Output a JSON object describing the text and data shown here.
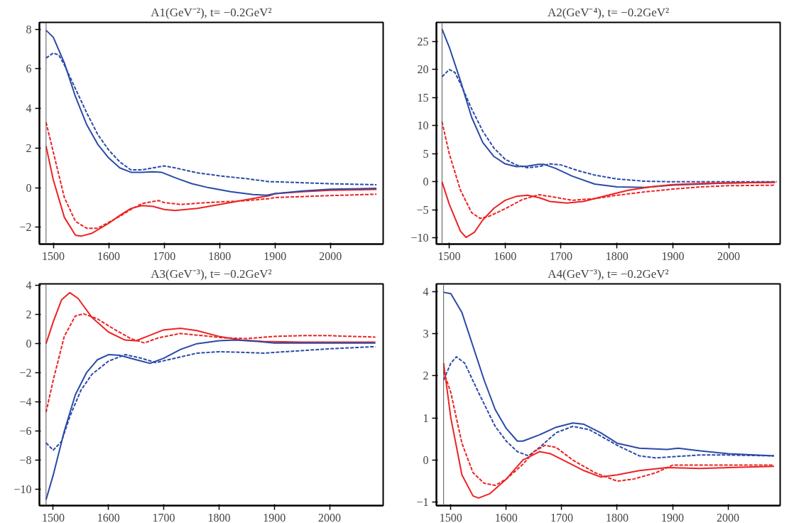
{
  "chart_data": [
    {
      "type": "line",
      "title": "A1(GeV⁻²), t= −0.2GeV²",
      "xlim": [
        1475,
        2095
      ],
      "xticks": [
        1500,
        1600,
        1700,
        1800,
        1900,
        2000
      ],
      "ylim": [
        -2.85,
        8.35
      ],
      "yticks": [
        {
          "value": -2,
          "label": "−2"
        },
        0,
        2,
        4,
        6,
        8
      ],
      "grid": false,
      "ref_lines": [
        {
          "axis": "x",
          "value": 1487,
          "color": "#555555"
        }
      ],
      "series": [
        {
          "color": "#2a4aa8",
          "line_style": "dashed",
          "x": [
            1487,
            1500,
            1510,
            1520,
            1540,
            1560,
            1580,
            1600,
            1620,
            1640,
            1660,
            1680,
            1700,
            1720,
            1760,
            1800,
            1850,
            1890,
            1900,
            1950,
            2000,
            2083
          ],
          "values": [
            6.55,
            6.8,
            6.7,
            6.2,
            5.0,
            3.8,
            2.7,
            1.9,
            1.3,
            0.9,
            0.9,
            1.0,
            1.1,
            1.0,
            0.75,
            0.6,
            0.45,
            0.3,
            0.3,
            0.25,
            0.2,
            0.15
          ]
        },
        {
          "color": "#ee2222",
          "line_style": "solid",
          "x": [
            1487,
            1500,
            1520,
            1540,
            1550,
            1570,
            1600,
            1620,
            1640,
            1660,
            1680,
            1700,
            1720,
            1760,
            1800,
            1850,
            1890,
            1900,
            1950,
            2000,
            2083
          ],
          "values": [
            2.1,
            0.4,
            -1.5,
            -2.4,
            -2.45,
            -2.3,
            -1.8,
            -1.4,
            -1.05,
            -0.9,
            -0.95,
            -1.1,
            -1.15,
            -1.05,
            -0.85,
            -0.6,
            -0.4,
            -0.3,
            -0.2,
            -0.13,
            -0.09
          ]
        },
        {
          "color": "#ee2222",
          "line_style": "dashed",
          "x": [
            1487,
            1500,
            1520,
            1540,
            1560,
            1580,
            1600,
            1620,
            1640,
            1660,
            1680,
            1690,
            1700,
            1730,
            1780,
            1850,
            1890,
            1900,
            1950,
            2000,
            2083
          ],
          "values": [
            3.3,
            1.8,
            -0.5,
            -1.7,
            -2.05,
            -2.05,
            -1.75,
            -1.45,
            -1.1,
            -0.8,
            -0.7,
            -0.65,
            -0.75,
            -0.85,
            -0.75,
            -0.65,
            -0.55,
            -0.5,
            -0.45,
            -0.4,
            -0.33
          ]
        },
        {
          "color": "#2a4aa8",
          "line_style": "solid",
          "x": [
            1487,
            1500,
            1520,
            1540,
            1560,
            1580,
            1600,
            1620,
            1640,
            1660,
            1680,
            1695,
            1720,
            1750,
            1780,
            1820,
            1860,
            1885,
            1900,
            1950,
            2000,
            2083
          ],
          "values": [
            7.95,
            7.6,
            6.3,
            4.6,
            3.2,
            2.2,
            1.5,
            1.0,
            0.78,
            0.78,
            0.8,
            0.78,
            0.5,
            0.2,
            0.0,
            -0.2,
            -0.35,
            -0.38,
            -0.3,
            -0.17,
            -0.08,
            -0.03
          ]
        }
      ]
    },
    {
      "type": "line",
      "title": "A2(GeV⁻⁴), t= −0.2GeV²",
      "xlim": [
        1477,
        2092
      ],
      "xticks": [
        1500,
        1600,
        1700,
        1800,
        1900,
        2000
      ],
      "ylim": [
        -11.1,
        28.4
      ],
      "yticks": [
        {
          "value": -10,
          "label": "−10"
        },
        {
          "value": -5,
          "label": "−5"
        },
        0,
        5,
        10,
        15,
        20,
        25
      ],
      "grid": false,
      "ref_lines": [
        {
          "axis": "x",
          "value": 1487,
          "color": "#555555"
        }
      ],
      "series": [
        {
          "color": "#2a4aa8",
          "line_style": "solid",
          "x": [
            1487,
            1500,
            1520,
            1540,
            1560,
            1580,
            1600,
            1620,
            1640,
            1660,
            1670,
            1690,
            1720,
            1760,
            1800,
            1850,
            1900,
            1950,
            2000,
            2083
          ],
          "values": [
            27.2,
            24,
            18,
            11.5,
            7,
            4.5,
            3.2,
            2.7,
            2.8,
            3.1,
            3.1,
            2.4,
            1.0,
            -0.4,
            -0.9,
            -1.0,
            -0.6,
            -0.4,
            -0.2,
            -0.1
          ]
        },
        {
          "color": "#2a4aa8",
          "line_style": "dashed",
          "x": [
            1487,
            1500,
            1510,
            1520,
            1540,
            1560,
            1580,
            1600,
            1620,
            1640,
            1660,
            1680,
            1700,
            1730,
            1760,
            1800,
            1850,
            1900,
            2000,
            2086
          ],
          "values": [
            18.7,
            20,
            19.5,
            17.5,
            13,
            9,
            6,
            4,
            3,
            2.5,
            2.7,
            3.2,
            3.0,
            2.0,
            1.2,
            0.5,
            0.1,
            0.0,
            0.0,
            0.0
          ]
        },
        {
          "color": "#ee2222",
          "line_style": "solid",
          "x": [
            1487,
            1500,
            1520,
            1530,
            1545,
            1560,
            1580,
            1600,
            1620,
            1640,
            1660,
            1680,
            1710,
            1740,
            1780,
            1820,
            1860,
            1900,
            1950,
            2000,
            2083
          ],
          "values": [
            0,
            -4,
            -8.8,
            -9.9,
            -9,
            -6.8,
            -4.7,
            -3.3,
            -2.6,
            -2.4,
            -2.8,
            -3.5,
            -3.8,
            -3.5,
            -2.5,
            -1.5,
            -0.9,
            -0.5,
            -0.3,
            -0.2,
            -0.1
          ]
        },
        {
          "color": "#ee2222",
          "line_style": "dashed",
          "x": [
            1487,
            1500,
            1520,
            1540,
            1555,
            1570,
            1600,
            1630,
            1660,
            1680,
            1720,
            1760,
            1800,
            1850,
            1900,
            1950,
            2000,
            2083
          ],
          "values": [
            10.7,
            5,
            -1.5,
            -5.5,
            -6.5,
            -6.2,
            -4.8,
            -3.2,
            -2.3,
            -2.6,
            -3.3,
            -3.0,
            -2.4,
            -1.8,
            -1.3,
            -0.9,
            -0.7,
            -0.6
          ]
        }
      ]
    },
    {
      "type": "line",
      "title": "A3(GeV⁻³), t= −0.2GeV²",
      "xlim": [
        1475,
        2097
      ],
      "xticks": [
        1500,
        1600,
        1700,
        1800,
        1900,
        2000
      ],
      "ylim": [
        -11.1,
        4.1
      ],
      "yticks": [
        {
          "value": -10,
          "label": "−10"
        },
        {
          "value": -8,
          "label": "−8"
        },
        {
          "value": -6,
          "label": "−6"
        },
        {
          "value": -4,
          "label": "−4"
        },
        {
          "value": -2,
          "label": "−2"
        },
        0,
        2,
        4
      ],
      "grid": false,
      "ref_lines": [
        {
          "axis": "x",
          "value": 1487,
          "color": "#555555"
        }
      ],
      "series": [
        {
          "color": "#ee2222",
          "line_style": "solid",
          "x": [
            1487,
            1500,
            1515,
            1530,
            1545,
            1570,
            1600,
            1630,
            1650,
            1670,
            1700,
            1730,
            1760,
            1800,
            1840,
            1880,
            1950,
            2083
          ],
          "values": [
            0,
            1.5,
            3.0,
            3.5,
            3.1,
            1.8,
            0.8,
            0.25,
            0.2,
            0.5,
            0.95,
            1.05,
            0.9,
            0.5,
            0.25,
            0.15,
            0.1,
            0.1
          ]
        },
        {
          "color": "#ee2222",
          "line_style": "dashed",
          "x": [
            1487,
            1500,
            1520,
            1540,
            1555,
            1580,
            1610,
            1640,
            1665,
            1690,
            1730,
            1770,
            1810,
            1850,
            1900,
            1950,
            2000,
            2083
          ],
          "values": [
            -4.7,
            -2.5,
            0.5,
            1.9,
            2.05,
            1.7,
            1.0,
            0.35,
            0.05,
            0.4,
            0.7,
            0.55,
            0.4,
            0.35,
            0.5,
            0.55,
            0.55,
            0.45
          ]
        },
        {
          "color": "#2a4aa8",
          "line_style": "solid",
          "x": [
            1487,
            1500,
            1520,
            1540,
            1560,
            1580,
            1600,
            1620,
            1650,
            1675,
            1700,
            1730,
            1760,
            1800,
            1830,
            1870,
            1900,
            1950,
            2083
          ],
          "values": [
            -10.7,
            -9,
            -6,
            -3.5,
            -2,
            -1.1,
            -0.75,
            -0.8,
            -1.1,
            -1.35,
            -1.0,
            -0.4,
            0.0,
            0.2,
            0.25,
            0.15,
            0.05,
            0.05,
            0.05
          ]
        },
        {
          "color": "#2a4aa8",
          "line_style": "dashed",
          "x": [
            1487,
            1500,
            1515,
            1530,
            1550,
            1570,
            1600,
            1630,
            1660,
            1685,
            1720,
            1760,
            1800,
            1850,
            1880,
            1920,
            1960,
            2000,
            2083
          ],
          "values": [
            -6.8,
            -7.3,
            -6.7,
            -5,
            -3.2,
            -2.1,
            -1.2,
            -0.75,
            -1.0,
            -1.3,
            -1.0,
            -0.65,
            -0.55,
            -0.6,
            -0.65,
            -0.55,
            -0.45,
            -0.35,
            -0.2
          ]
        }
      ]
    },
    {
      "type": "line",
      "title": "A4(GeV⁻³), t= −0.2GeV²",
      "xlim": [
        1474,
        2094
      ],
      "xticks": [
        1500,
        1600,
        1700,
        1800,
        1900,
        2000
      ],
      "ylim": [
        -1.08,
        4.18
      ],
      "yticks": [
        {
          "value": -1,
          "label": "−1"
        },
        0,
        1,
        2,
        3,
        4
      ],
      "grid": false,
      "ref_lines": [
        {
          "axis": "x",
          "value": 1487,
          "color": "#555555"
        }
      ],
      "series": [
        {
          "color": "#2a4aa8",
          "line_style": "solid",
          "x": [
            1487,
            1500,
            1520,
            1540,
            1560,
            1580,
            1600,
            1620,
            1630,
            1660,
            1690,
            1720,
            1740,
            1770,
            1800,
            1840,
            1890,
            1910,
            1950,
            2000,
            2083
          ],
          "values": [
            3.98,
            3.95,
            3.5,
            2.7,
            1.9,
            1.2,
            0.75,
            0.45,
            0.45,
            0.6,
            0.78,
            0.88,
            0.85,
            0.65,
            0.4,
            0.28,
            0.25,
            0.28,
            0.22,
            0.15,
            0.1
          ]
        },
        {
          "color": "#2a4aa8",
          "line_style": "dashed",
          "x": [
            1487,
            1500,
            1510,
            1525,
            1550,
            1580,
            1600,
            1620,
            1640,
            1660,
            1690,
            1720,
            1750,
            1780,
            1800,
            1840,
            1870,
            1900,
            1950,
            2000,
            2083
          ],
          "values": [
            1.9,
            2.3,
            2.45,
            2.3,
            1.6,
            0.8,
            0.45,
            0.2,
            0.1,
            0.3,
            0.65,
            0.8,
            0.72,
            0.5,
            0.35,
            0.1,
            0.05,
            0.08,
            0.12,
            0.12,
            0.1
          ]
        },
        {
          "color": "#ee2222",
          "line_style": "solid",
          "x": [
            1487,
            1500,
            1520,
            1540,
            1550,
            1570,
            1600,
            1630,
            1660,
            1680,
            1710,
            1740,
            1770,
            1800,
            1840,
            1890,
            1950,
            2000,
            2083
          ],
          "values": [
            2.3,
            1.0,
            -0.35,
            -0.85,
            -0.9,
            -0.8,
            -0.45,
            0.0,
            0.2,
            0.15,
            -0.05,
            -0.25,
            -0.4,
            -0.35,
            -0.25,
            -0.18,
            -0.2,
            -0.18,
            -0.15
          ]
        },
        {
          "color": "#ee2222",
          "line_style": "dashed",
          "x": [
            1487,
            1500,
            1520,
            1540,
            1560,
            1580,
            1600,
            1630,
            1650,
            1670,
            1690,
            1720,
            1760,
            1800,
            1830,
            1870,
            1895,
            1900,
            2000,
            2083
          ],
          "values": [
            2.1,
            1.6,
            0.4,
            -0.3,
            -0.55,
            -0.6,
            -0.45,
            -0.1,
            0.2,
            0.35,
            0.3,
            0.0,
            -0.3,
            -0.5,
            -0.45,
            -0.3,
            -0.15,
            -0.12,
            -0.12,
            -0.12
          ]
        }
      ]
    }
  ]
}
